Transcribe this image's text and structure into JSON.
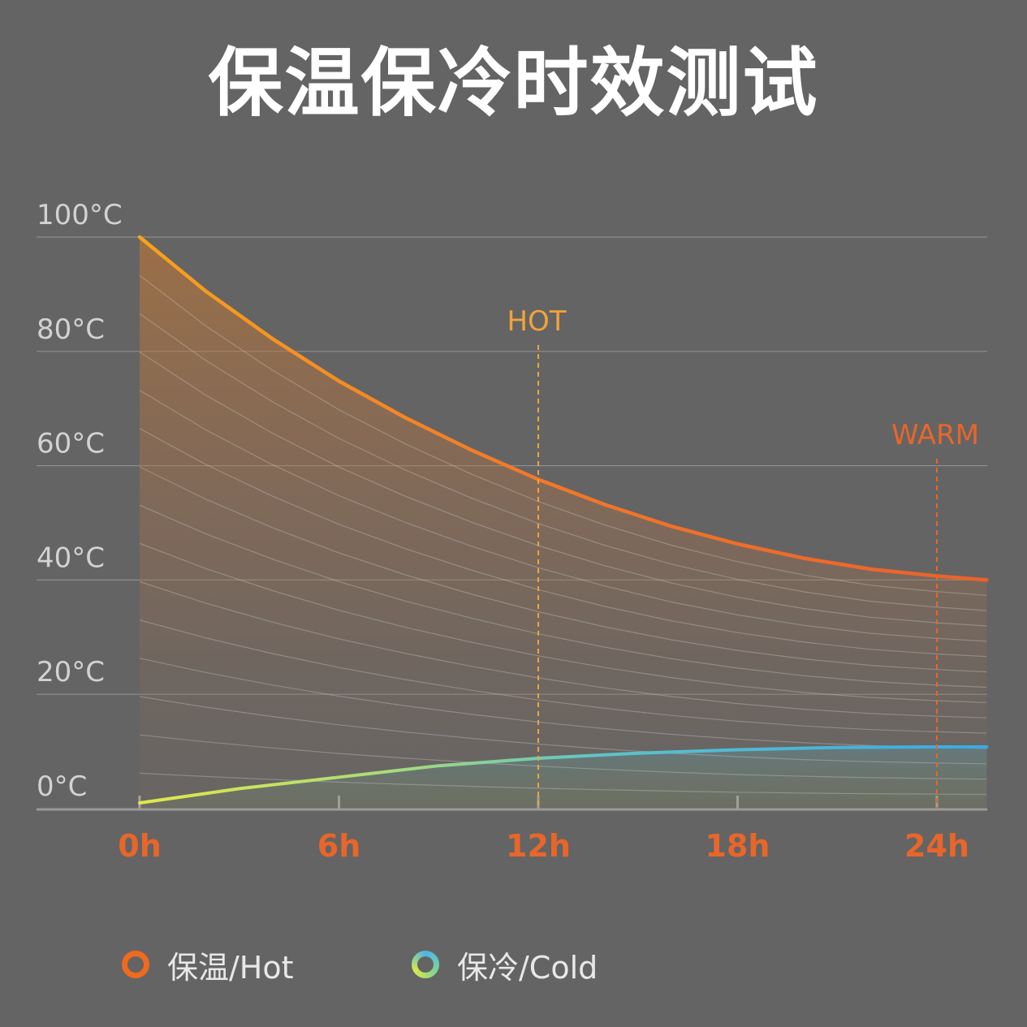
{
  "title": "保温保冷时效测试",
  "chart_data": {
    "type": "line",
    "x_ticks": [
      "0h",
      "6h",
      "12h",
      "18h",
      "24h"
    ],
    "y_ticks": [
      "0°C",
      "20°C",
      "40°C",
      "60°C",
      "80°C",
      "100°C"
    ],
    "xlim": [
      0,
      25.5
    ],
    "ylim": [
      0,
      100
    ],
    "series": [
      {
        "name": "保温/Hot",
        "color": "#f06a1e",
        "x": [
          0,
          2,
          4,
          6,
          8,
          10,
          12,
          14,
          16,
          18,
          20,
          22,
          24,
          25.5
        ],
        "y": [
          100,
          90.5,
          82.2,
          74.8,
          68.4,
          62.7,
          57.6,
          53.2,
          49.4,
          46.3,
          43.8,
          41.9,
          40.7,
          40
        ]
      },
      {
        "name": "保冷/Cold",
        "color": "#4ab6e8",
        "x": [
          0,
          3,
          6,
          9,
          12,
          15,
          18,
          21,
          24,
          25.5
        ],
        "y": [
          1,
          3.5,
          5.5,
          7.5,
          8.8,
          9.7,
          10.3,
          10.7,
          10.8,
          10.8
        ]
      }
    ],
    "annotations": [
      {
        "label": "HOT",
        "x": 12,
        "color": "#f0a43a"
      },
      {
        "label": "WARM",
        "x": 24,
        "color": "#e8662a"
      }
    ],
    "grid": true,
    "legend_position": "bottom-left"
  }
}
